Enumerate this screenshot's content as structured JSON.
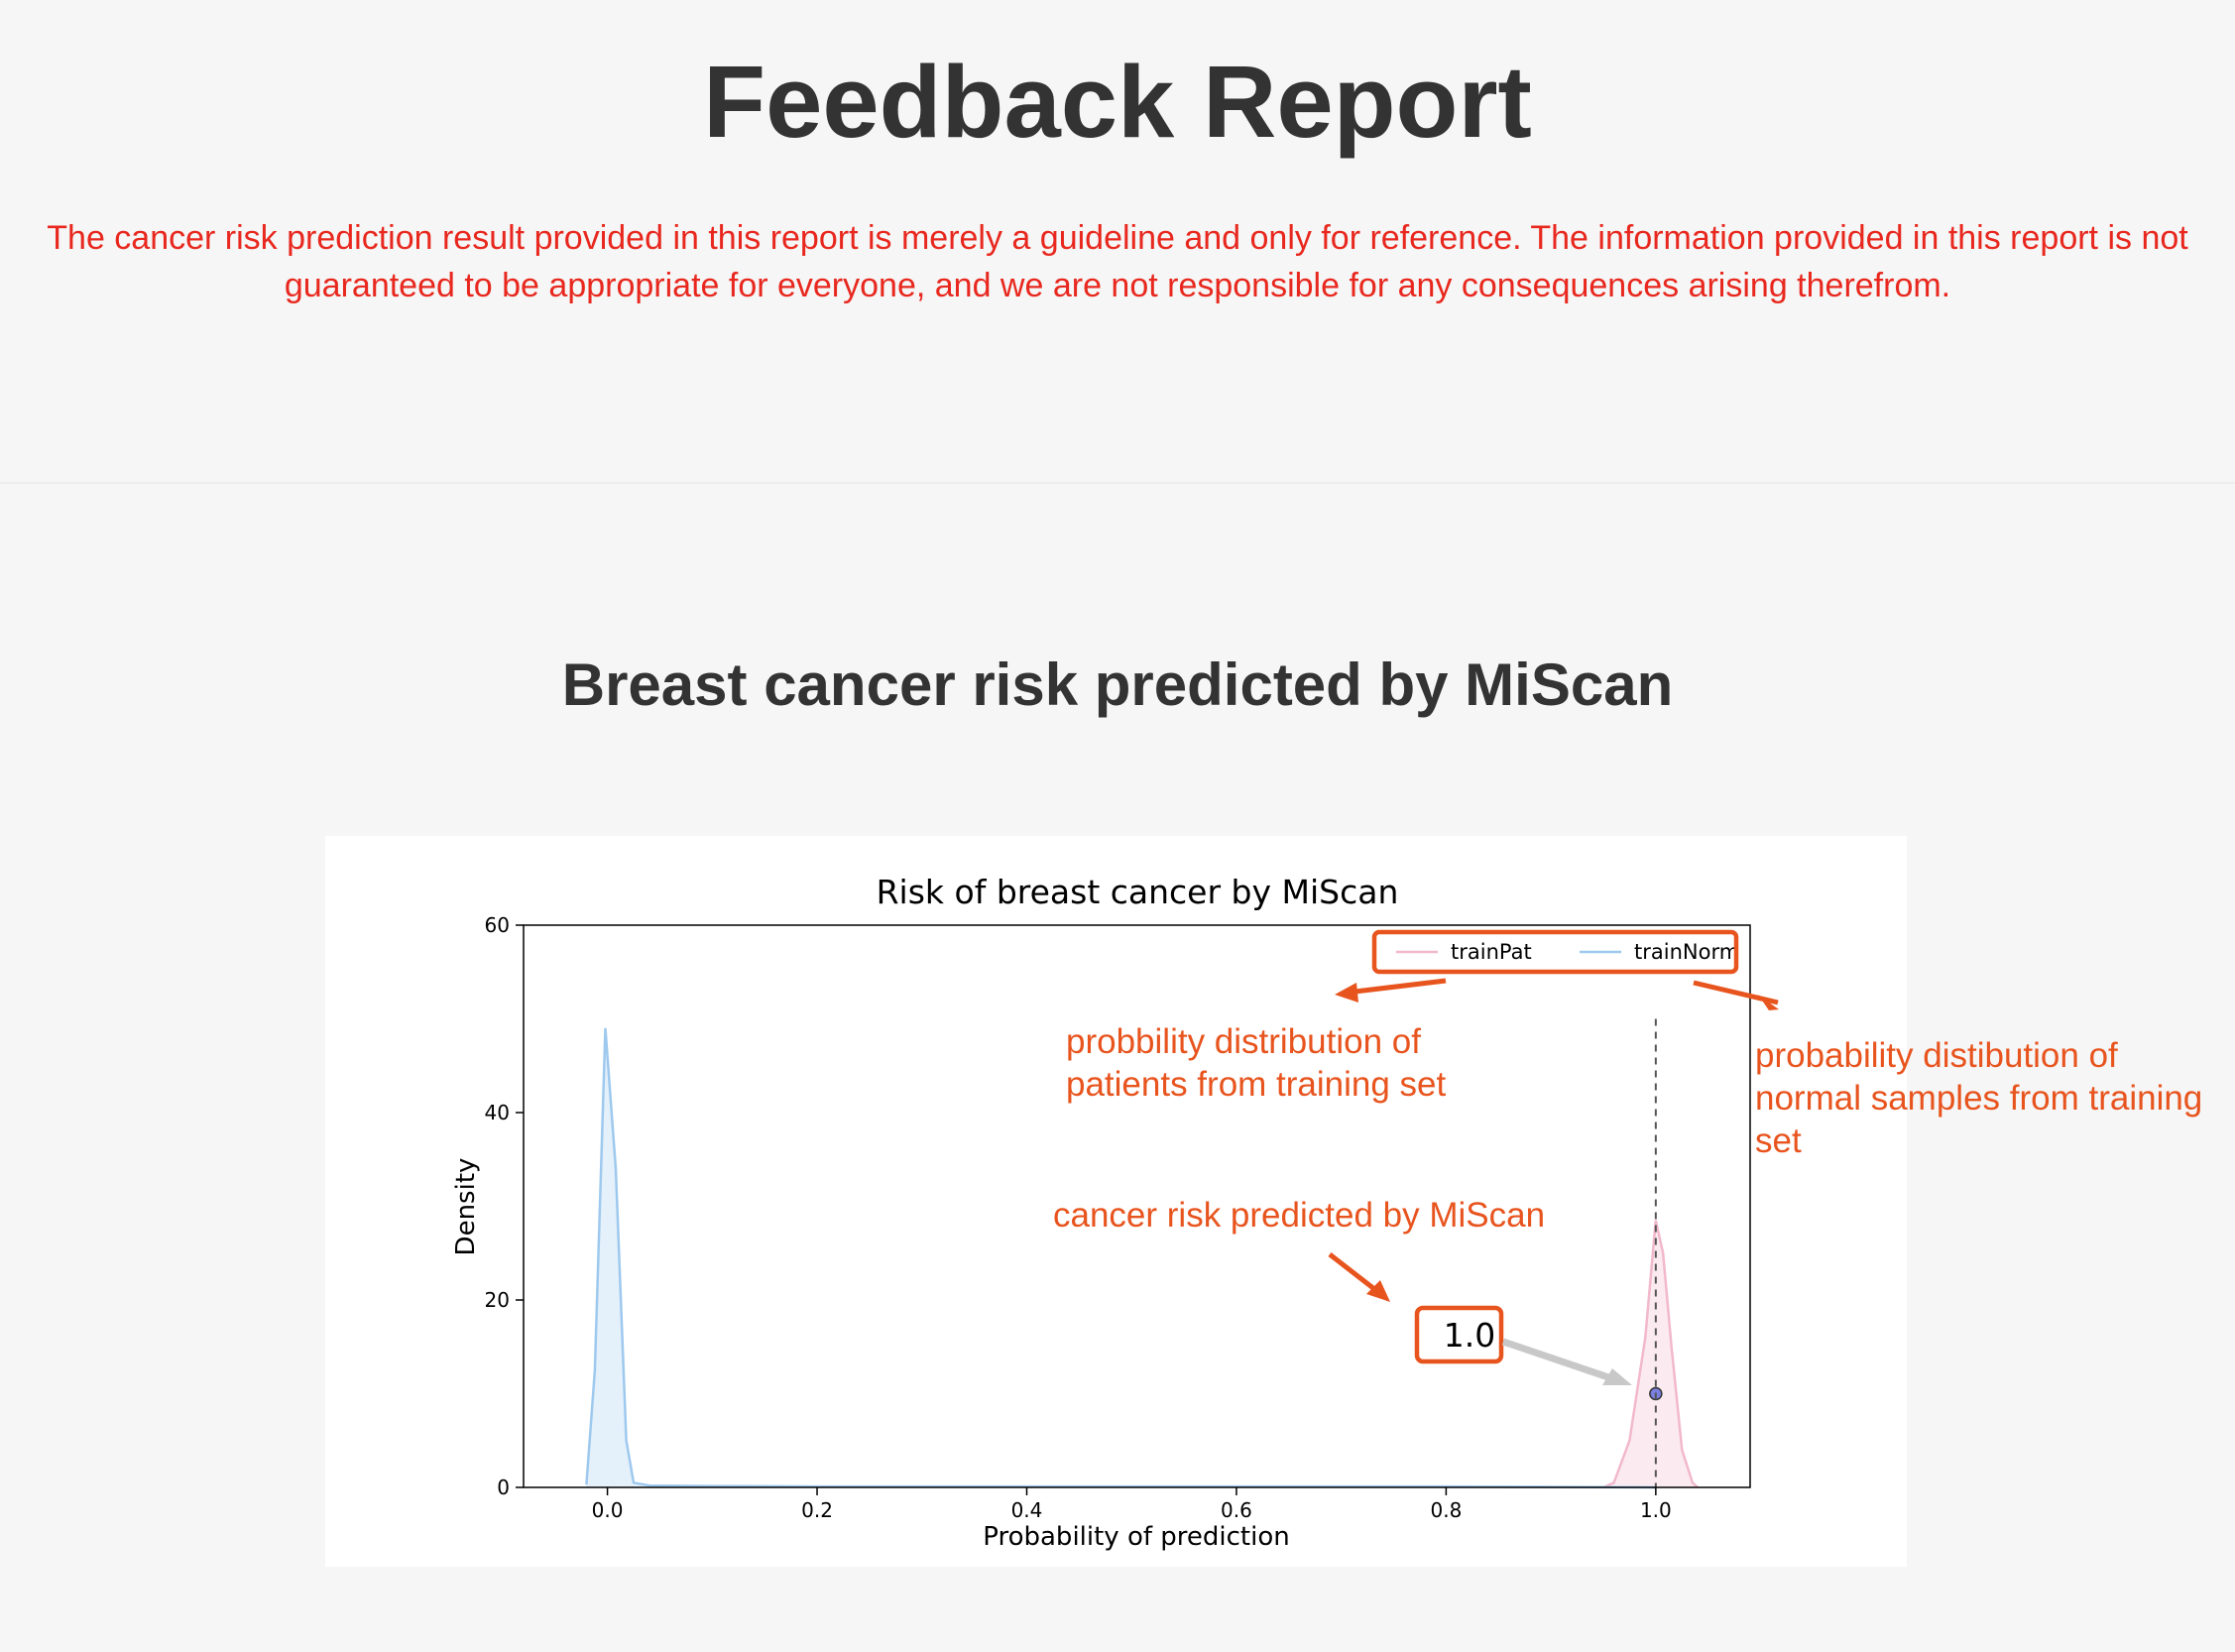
{
  "page": {
    "title": "Feedback Report",
    "disclaimer": "The cancer risk prediction result provided in this report is merely a guideline and only for reference. The information provided in this report is not guaranteed to be appropriate for everyone, and we are not responsible for any consequences arising therefrom.",
    "section_title": "Breast cancer risk predicted by MiScan"
  },
  "colors": {
    "title": "#333333",
    "disclaimer": "#e8281e",
    "annotation": "#e8541e",
    "trainPat": "#f2b8cb",
    "trainNorm": "#9ec9ee",
    "marker": "#7b7fe0",
    "arrow_gray": "#c8c8c8"
  },
  "chart_data": {
    "type": "area",
    "title": "Risk of breast cancer by MiScan",
    "xlabel": "Probability of prediction",
    "ylabel": "Density",
    "xlim": [
      -0.08,
      1.09
    ],
    "ylim": [
      0,
      60
    ],
    "xticks": [
      "0.0",
      "0.2",
      "0.4",
      "0.6",
      "0.8",
      "1.0"
    ],
    "yticks": [
      "0",
      "20",
      "40",
      "60"
    ],
    "legend_position": "top-right",
    "series": [
      {
        "name": "trainPat",
        "color": "#f2b8cb",
        "points": [
          [
            0.95,
            0
          ],
          [
            0.96,
            0.5
          ],
          [
            0.975,
            5
          ],
          [
            0.99,
            16
          ],
          [
            1.0,
            28.5
          ],
          [
            1.007,
            25
          ],
          [
            1.015,
            15
          ],
          [
            1.025,
            4
          ],
          [
            1.035,
            0.5
          ],
          [
            1.04,
            0
          ]
        ]
      },
      {
        "name": "trainNorm",
        "color": "#9ec9ee",
        "points": [
          [
            -0.02,
            0.3
          ],
          [
            -0.012,
            12.5
          ],
          [
            -0.002,
            49
          ],
          [
            0.008,
            34
          ],
          [
            0.018,
            5
          ],
          [
            0.025,
            0.5
          ],
          [
            0.04,
            0.2
          ],
          [
            0.1,
            0.15
          ],
          [
            0.2,
            0.1
          ],
          [
            0.4,
            0.1
          ],
          [
            0.6,
            0.1
          ],
          [
            0.8,
            0.1
          ],
          [
            1.0,
            0
          ]
        ]
      }
    ],
    "prediction": {
      "x": 1.0,
      "y": 10,
      "label": "1.0"
    },
    "vline_x": 1.0
  },
  "annotations": {
    "patients": [
      "probbility distribution of",
      "patients from training set"
    ],
    "normal": [
      "probability distibution of",
      "normal samples from training",
      "set"
    ],
    "risk": "cancer risk predicted by MiScan"
  }
}
